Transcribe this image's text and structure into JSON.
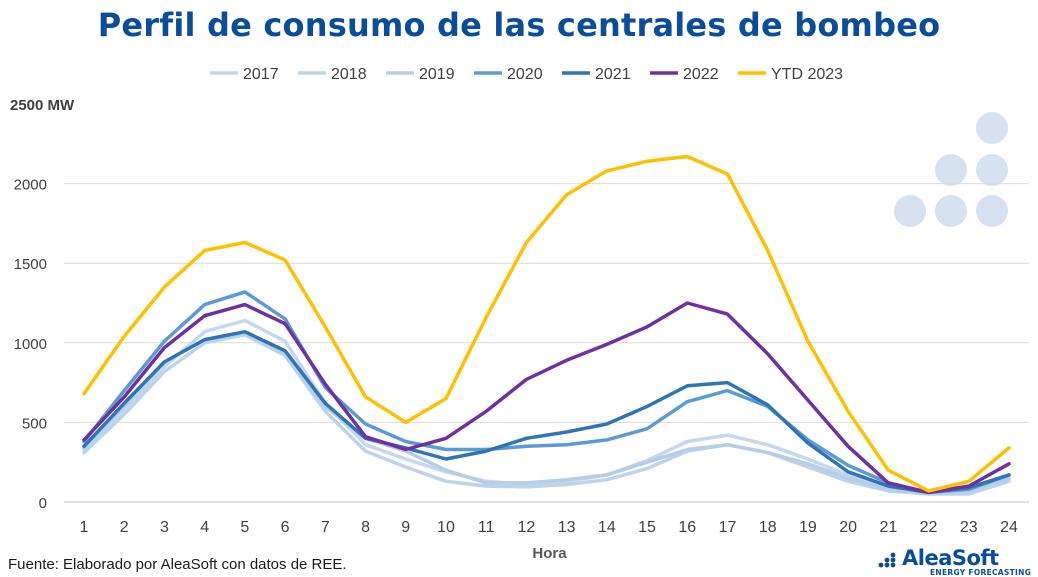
{
  "title": "Perfil de consumo de las centrales de bombeo",
  "source": "Fuente: Elaborado por AleaSoft con datos de REE.",
  "logo": {
    "name": "AleaSoft",
    "tagline": "ENERGY FORECASTING"
  },
  "chart_data": {
    "type": "line",
    "title": "Perfil de consumo de las centrales de bombeo",
    "xlabel": "Hora",
    "ylabel": "",
    "ylim": [
      0,
      2500
    ],
    "y_ticks": [
      0,
      500,
      1000,
      1500,
      2000
    ],
    "y_tick_top_label": "2500 MW",
    "x": [
      1,
      2,
      3,
      4,
      5,
      6,
      7,
      8,
      9,
      10,
      11,
      12,
      13,
      14,
      15,
      16,
      17,
      18,
      19,
      20,
      21,
      22,
      23,
      24
    ],
    "grid": true,
    "legend_position": "top",
    "series": [
      {
        "name": "2017",
        "color": "#c3d8ee",
        "width": 3.5,
        "values": [
          330,
          580,
          850,
          1070,
          1140,
          1010,
          620,
          360,
          270,
          190,
          130,
          110,
          130,
          170,
          260,
          380,
          420,
          360,
          270,
          170,
          90,
          60,
          60,
          140
        ]
      },
      {
        "name": "2018",
        "color": "#bdd3ea",
        "width": 3.5,
        "values": [
          310,
          550,
          820,
          1000,
          1050,
          920,
          570,
          320,
          220,
          130,
          100,
          95,
          110,
          140,
          210,
          320,
          360,
          310,
          220,
          130,
          70,
          50,
          50,
          130
        ]
      },
      {
        "name": "2019",
        "color": "#b5cde8",
        "width": 3.5,
        "values": [
          340,
          600,
          880,
          1020,
          1060,
          940,
          600,
          400,
          320,
          200,
          120,
          120,
          140,
          170,
          250,
          330,
          360,
          310,
          240,
          150,
          80,
          55,
          70,
          150
        ]
      },
      {
        "name": "2020",
        "color": "#5b9bd5",
        "width": 3.5,
        "values": [
          380,
          700,
          1010,
          1240,
          1320,
          1150,
          720,
          490,
          380,
          330,
          330,
          350,
          360,
          390,
          460,
          630,
          700,
          600,
          390,
          230,
          120,
          60,
          80,
          170
        ]
      },
      {
        "name": "2021",
        "color": "#2f75b5",
        "width": 3.5,
        "values": [
          350,
          620,
          880,
          1020,
          1070,
          950,
          620,
          400,
          340,
          270,
          320,
          400,
          440,
          490,
          600,
          730,
          750,
          610,
          370,
          190,
          100,
          60,
          90,
          170
        ]
      },
      {
        "name": "2022",
        "color": "#7030a0",
        "width": 3.5,
        "values": [
          390,
          660,
          970,
          1170,
          1240,
          1120,
          740,
          410,
          330,
          400,
          570,
          770,
          890,
          990,
          1100,
          1250,
          1180,
          930,
          640,
          350,
          120,
          60,
          100,
          240
        ]
      },
      {
        "name": "YTD 2023",
        "color": "#ffc000",
        "width": 3.5,
        "values": [
          680,
          1040,
          1350,
          1580,
          1630,
          1520,
          1100,
          660,
          500,
          650,
          1160,
          1630,
          1930,
          2080,
          2140,
          2170,
          2060,
          1580,
          1010,
          570,
          200,
          70,
          130,
          340
        ]
      }
    ]
  }
}
